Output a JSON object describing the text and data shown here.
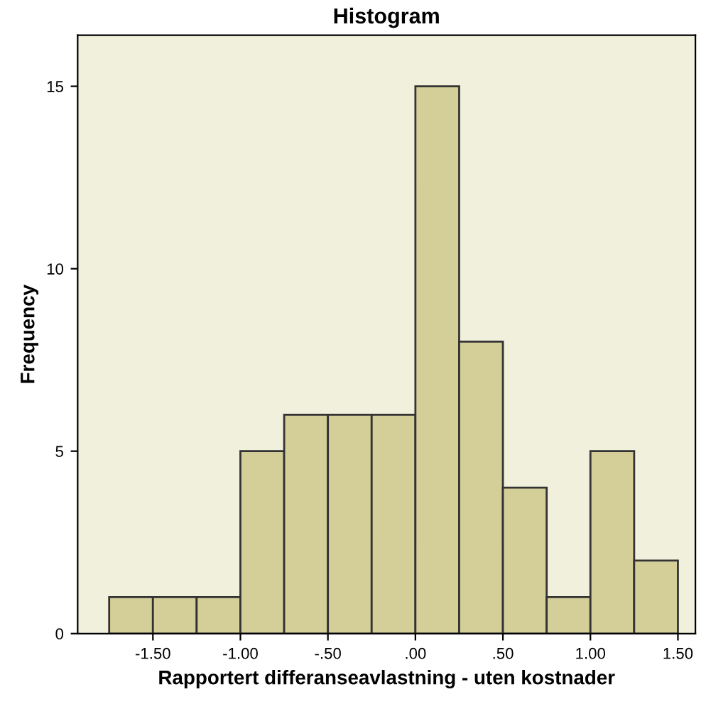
{
  "chart_data": {
    "type": "histogram",
    "title": "Histogram",
    "xlabel": "Rapportert differanseavlastning - uten kostnader",
    "ylabel": "Frequency",
    "bins": [
      -1.75,
      -1.5,
      -1.25,
      -1.0,
      -0.75,
      -0.5,
      -0.25,
      0.0,
      0.25,
      0.5,
      0.75,
      1.0,
      1.25,
      1.5
    ],
    "values": [
      1,
      1,
      1,
      5,
      6,
      6,
      6,
      15,
      8,
      4,
      1,
      5,
      2
    ],
    "color": "#d4cf98",
    "xlim": [
      -1.93,
      1.6
    ],
    "xticks": [
      {
        "value": -1.5,
        "label": "-1.50"
      },
      {
        "value": -1.0,
        "label": "-1.00"
      },
      {
        "value": -0.5,
        "label": "-.50"
      },
      {
        "value": 0.0,
        "label": ".00"
      },
      {
        "value": 0.5,
        "label": ".50"
      },
      {
        "value": 1.0,
        "label": "1.00"
      },
      {
        "value": 1.5,
        "label": "1.50"
      }
    ],
    "ylim": [
      0,
      16.4
    ],
    "yticks": [
      0,
      5,
      10,
      15
    ],
    "grid": false,
    "legend": false
  }
}
